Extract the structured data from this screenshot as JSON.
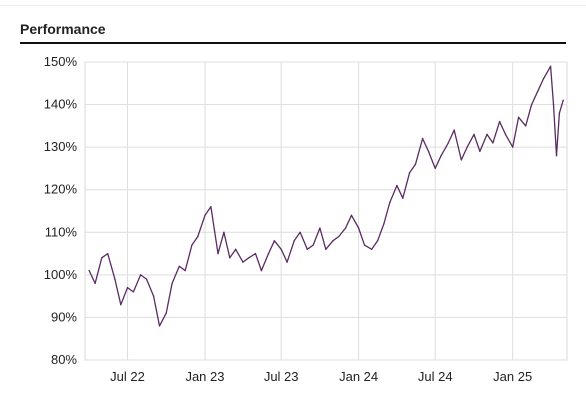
{
  "header": {
    "title": "Performance"
  },
  "chart_data": {
    "type": "line",
    "title": "Performance",
    "xlabel": "",
    "ylabel": "",
    "grid": true,
    "line_color": "#5b2b63",
    "ylim": [
      80,
      150
    ],
    "y_ticks": [
      "150%",
      "140%",
      "130%",
      "120%",
      "110%",
      "100%",
      "90%",
      "80%"
    ],
    "x_ticks": [
      "Jul 22",
      "Jan 23",
      "Jul 23",
      "Jan 24",
      "Jul 24",
      "Jan 25"
    ],
    "x": [
      "2022-04-01",
      "2022-04-15",
      "2022-05-01",
      "2022-05-15",
      "2022-06-01",
      "2022-06-15",
      "2022-07-01",
      "2022-07-15",
      "2022-08-01",
      "2022-08-15",
      "2022-09-01",
      "2022-09-15",
      "2022-10-01",
      "2022-10-15",
      "2022-11-01",
      "2022-11-15",
      "2022-12-01",
      "2022-12-15",
      "2023-01-01",
      "2023-01-15",
      "2023-02-01",
      "2023-02-15",
      "2023-03-01",
      "2023-03-15",
      "2023-04-01",
      "2023-04-15",
      "2023-05-01",
      "2023-05-15",
      "2023-06-01",
      "2023-06-15",
      "2023-07-01",
      "2023-07-15",
      "2023-08-01",
      "2023-08-15",
      "2023-09-01",
      "2023-09-15",
      "2023-10-01",
      "2023-10-15",
      "2023-11-01",
      "2023-11-15",
      "2023-12-01",
      "2023-12-15",
      "2024-01-01",
      "2024-01-15",
      "2024-02-01",
      "2024-02-15",
      "2024-03-01",
      "2024-03-15",
      "2024-04-01",
      "2024-04-15",
      "2024-05-01",
      "2024-05-15",
      "2024-06-01",
      "2024-06-15",
      "2024-07-01",
      "2024-07-15",
      "2024-08-01",
      "2024-08-15",
      "2024-09-01",
      "2024-09-15",
      "2024-10-01",
      "2024-10-15",
      "2024-11-01",
      "2024-11-15",
      "2024-12-01",
      "2024-12-15",
      "2025-01-01",
      "2025-01-15",
      "2025-02-01",
      "2025-02-15",
      "2025-03-01",
      "2025-03-15",
      "2025-04-01",
      "2025-04-08",
      "2025-04-15",
      "2025-04-22",
      "2025-05-01"
    ],
    "series": [
      {
        "values": [
          101,
          98,
          104,
          105,
          99,
          93,
          97,
          96,
          100,
          99,
          95,
          88,
          91,
          98,
          102,
          101,
          107,
          109,
          114,
          116,
          105,
          110,
          104,
          106,
          103,
          104,
          105,
          101,
          105,
          108,
          106,
          103,
          108,
          110,
          106,
          107,
          111,
          106,
          108,
          109,
          111,
          114,
          111,
          107,
          106,
          108,
          112,
          117,
          121,
          118,
          124,
          126,
          132,
          129,
          125,
          128,
          131,
          134,
          127,
          130,
          133,
          129,
          133,
          131,
          136,
          133,
          130,
          137,
          135,
          140,
          143,
          146,
          149,
          140,
          128,
          138,
          141
        ]
      }
    ]
  }
}
